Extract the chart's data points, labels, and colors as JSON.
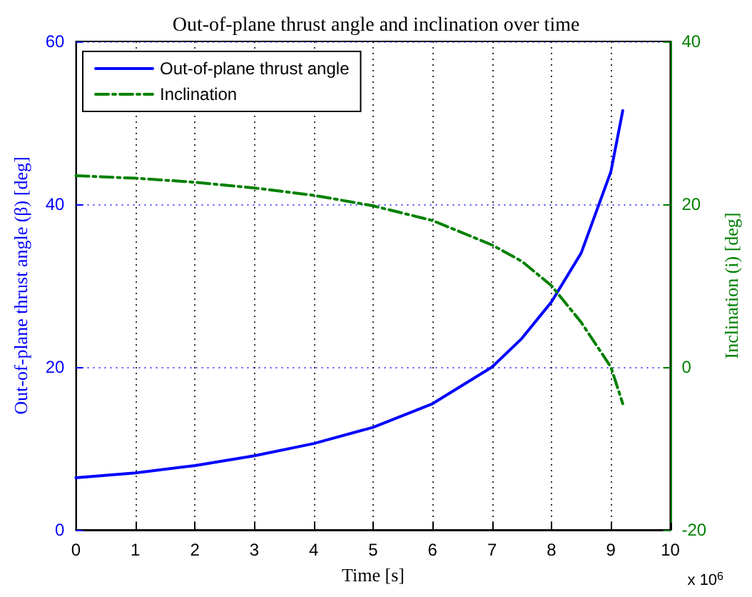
{
  "chart_data": {
    "type": "line",
    "title": "Out-of-plane thrust angle and inclination over time",
    "xlabel": "Time [s]",
    "ylabel": "Out-of-plane thrust angle (β) [deg]",
    "y2label": "Inclination (i) [deg]",
    "annotations": [
      "x 10$^{6}$"
    ],
    "xlim": [
      0,
      10
    ],
    "xticks": [
      0,
      1,
      2,
      3,
      4,
      5,
      6,
      7,
      8,
      9,
      10
    ],
    "ylim": [
      0,
      60
    ],
    "yticks": [
      0,
      20,
      40,
      60
    ],
    "y2lim": [
      -20,
      40
    ],
    "y2ticks": [
      -20,
      0,
      20,
      40
    ],
    "grid": true,
    "legend": "top left",
    "marker": "none",
    "series": [
      {
        "name": "Out-of-plane thrust angle",
        "color": "#0000ff",
        "line_style": "solid",
        "x": [
          0,
          1,
          2,
          3,
          4,
          5,
          6,
          7,
          7.5,
          8,
          8.5,
          9,
          9.2
        ],
        "values": [
          6.4,
          7.0,
          7.9,
          9.1,
          10.6,
          12.6,
          15.5,
          20,
          23.5,
          28,
          34,
          44,
          51.5
        ]
      },
      {
        "name": "Inclination",
        "color": "#008000",
        "line_style": "dashdot",
        "axis": "y2",
        "x": [
          0,
          1,
          2,
          3,
          4,
          5,
          6,
          7,
          7.5,
          8,
          8.5,
          9,
          9.2
        ],
        "values": [
          23.5,
          23.2,
          22.7,
          22,
          21.1,
          19.8,
          18,
          15,
          13,
          10,
          5.5,
          0,
          -4.5
        ]
      }
    ]
  }
}
